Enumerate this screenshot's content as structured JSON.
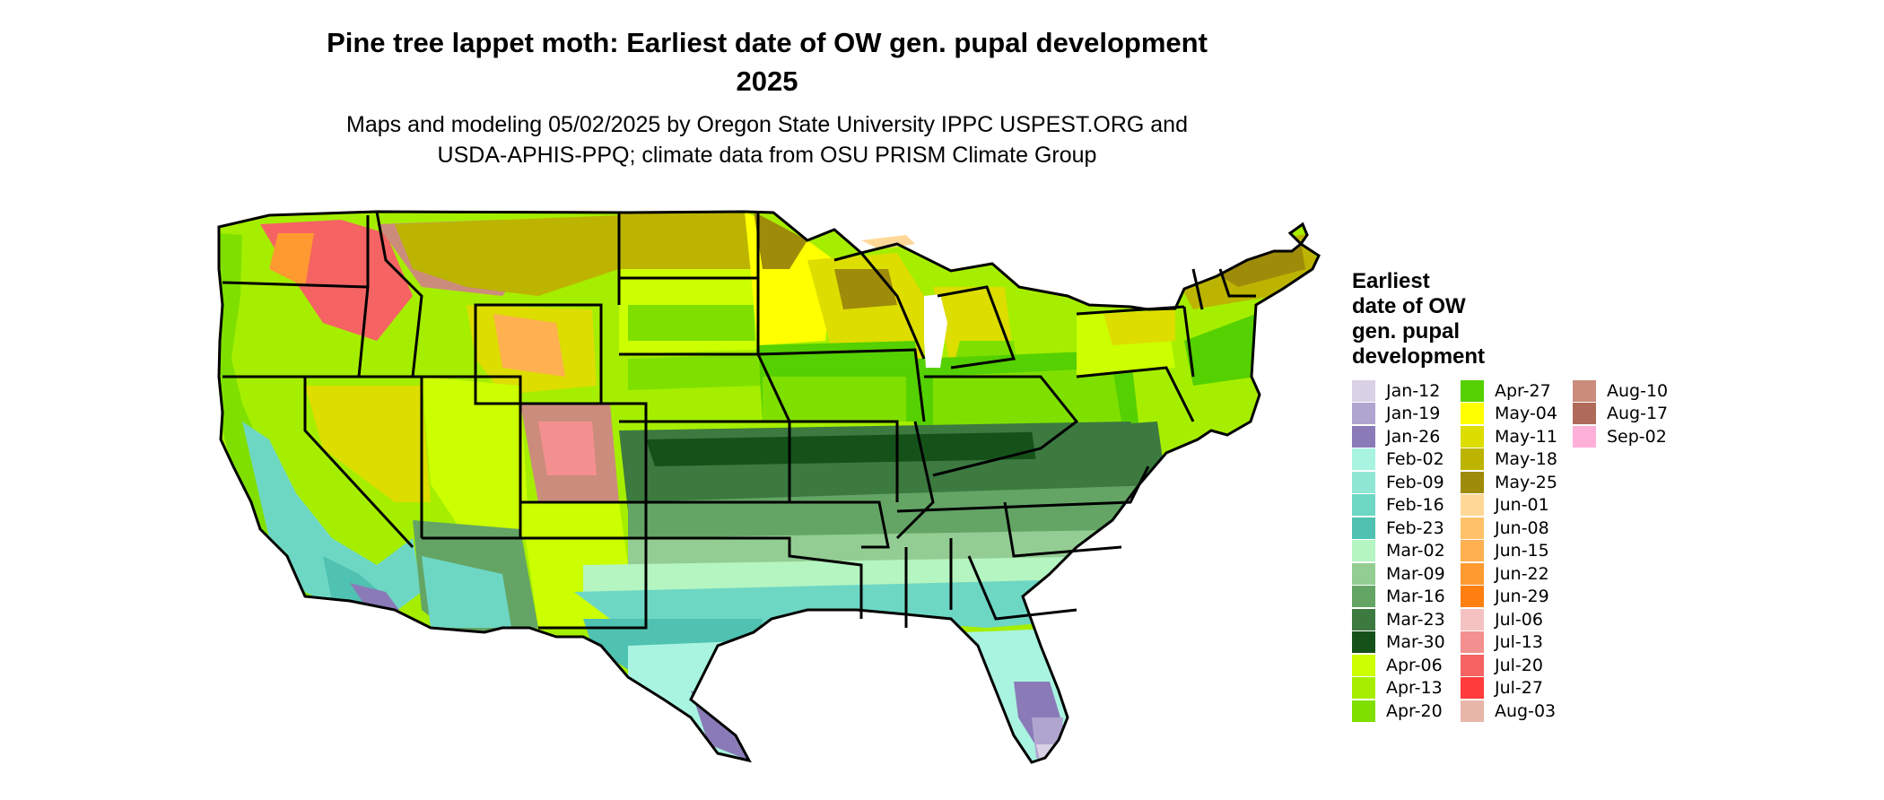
{
  "header": {
    "title_line1": "Pine tree lappet moth: Earliest date of OW gen. pupal development",
    "title_line2": "2025",
    "subtitle_line1": "Maps and modeling 05/02/2025 by Oregon State University IPPC USPEST.ORG and",
    "subtitle_line2": "USDA-APHIS-PPQ; climate data from OSU PRISM Climate Group"
  },
  "legend": {
    "title_lines": [
      "Earliest",
      "date of OW",
      "gen. pupal",
      "development"
    ],
    "columns": [
      [
        {
          "label": "Jan-12",
          "color": "#d9d2e6"
        },
        {
          "label": "Jan-19",
          "color": "#b0a5cf"
        },
        {
          "label": "Jan-26",
          "color": "#8a7bb8"
        },
        {
          "label": "Feb-02",
          "color": "#a9f4e0"
        },
        {
          "label": "Feb-09",
          "color": "#8fe7d3"
        },
        {
          "label": "Feb-16",
          "color": "#6ed7c4"
        },
        {
          "label": "Feb-23",
          "color": "#4fc2b1"
        },
        {
          "label": "Mar-02",
          "color": "#b5f5c1"
        },
        {
          "label": "Mar-09",
          "color": "#93cd93"
        },
        {
          "label": "Mar-16",
          "color": "#64a565"
        },
        {
          "label": "Mar-23",
          "color": "#3c7a40"
        },
        {
          "label": "Mar-30",
          "color": "#15521a"
        },
        {
          "label": "Apr-06",
          "color": "#ccff00"
        },
        {
          "label": "Apr-13",
          "color": "#a6ee00"
        },
        {
          "label": "Apr-20",
          "color": "#7fe000"
        }
      ],
      [
        {
          "label": "Apr-27",
          "color": "#55d000"
        },
        {
          "label": "May-04",
          "color": "#ffff00"
        },
        {
          "label": "May-11",
          "color": "#dddd00"
        },
        {
          "label": "May-18",
          "color": "#bcb400"
        },
        {
          "label": "May-25",
          "color": "#9e8b0a"
        },
        {
          "label": "Jun-01",
          "color": "#ffd898"
        },
        {
          "label": "Jun-08",
          "color": "#ffc26a"
        },
        {
          "label": "Jun-15",
          "color": "#ffb050"
        },
        {
          "label": "Jun-22",
          "color": "#ff9a30"
        },
        {
          "label": "Jun-29",
          "color": "#ff7f10"
        },
        {
          "label": "Jul-06",
          "color": "#f5c2c2"
        },
        {
          "label": "Jul-13",
          "color": "#f49090"
        },
        {
          "label": "Jul-20",
          "color": "#f56363"
        },
        {
          "label": "Jul-27",
          "color": "#ff3b3b"
        },
        {
          "label": "Aug-03",
          "color": "#e8b7aa"
        }
      ],
      [
        {
          "label": "Aug-10",
          "color": "#cc8c7c"
        },
        {
          "label": "Aug-17",
          "color": "#b06a5a"
        },
        {
          "label": "Sep-02",
          "color": "#ffb0d8"
        }
      ]
    ]
  }
}
